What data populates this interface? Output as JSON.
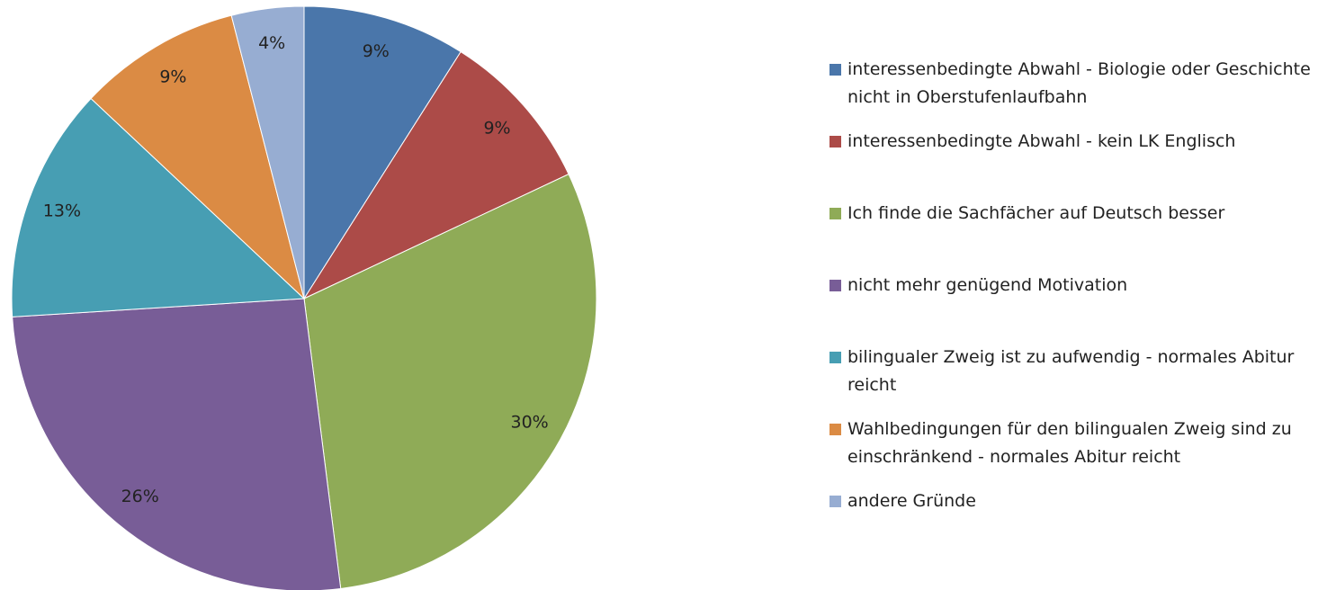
{
  "chart_data": {
    "type": "pie",
    "categories": [
      "interessenbedingte Abwahl - Biologie oder Geschichte nicht in Oberstufenlaufbahn",
      "interessenbedingte Abwahl - kein LK Englisch",
      "Ich finde die Sachfächer auf Deutsch besser",
      "nicht mehr genügend Motivation",
      "bilingualer Zweig ist zu aufwendig - normales Abitur reicht",
      "Wahlbedingungen für den bilingualen Zweig sind zu einschränkend - normales Abitur reicht",
      "andere Gründe"
    ],
    "values": [
      9,
      9,
      30,
      26,
      13,
      9,
      4
    ],
    "value_labels": [
      "9%",
      "9%",
      "30%",
      "26%",
      "13%",
      "9%",
      "4%"
    ],
    "colors": [
      "#4a76aa",
      "#ac4b48",
      "#8fab57",
      "#785d97",
      "#479eb3",
      "#db8b44",
      "#97add2"
    ],
    "legend": "right"
  }
}
